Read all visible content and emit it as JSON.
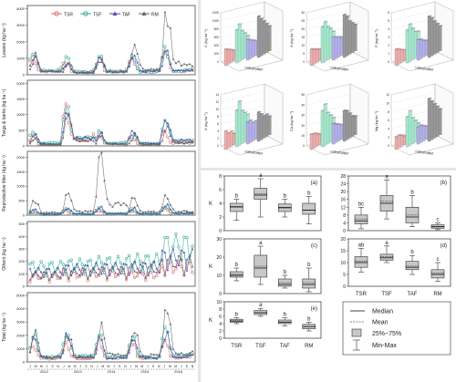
{
  "colors": {
    "TSR": "#e36b6b",
    "TSF": "#2fae97",
    "TAF": "#4b4fb0",
    "RM": "#666666",
    "TSR_bar": "#f2b0b0",
    "TSF_bar": "#a7ecd0",
    "TAF_bar": "#b6b3ef",
    "RM_bar": "#9a9a9a"
  },
  "chart_data": [
    {
      "type": "line",
      "panel": "time-series",
      "legend": [
        "TSR",
        "TSF",
        "TAF",
        "RM"
      ],
      "legend_position": "top",
      "x_years": [
        "2012",
        "2013",
        "2014",
        "2015",
        "2016"
      ],
      "x_months": [
        "J",
        "M",
        "M",
        "J",
        "S",
        "N",
        "J",
        "M",
        "M",
        "J",
        "S",
        "N",
        "J",
        "M",
        "M",
        "J",
        "S",
        "N",
        "J",
        "M",
        "M",
        "J",
        "S",
        "N",
        "J",
        "M",
        "M",
        "J",
        "S",
        "N"
      ],
      "subplots": [
        {
          "ylabel": "Leaves (kg ha⁻¹)",
          "yticks": [
            0,
            1000,
            2000,
            3000,
            4000
          ],
          "ylim": [
            0,
            4200
          ],
          "peaks": {
            "TSR": [
              1200,
              900,
              1100,
              1100,
              1400
            ],
            "TSF": [
              1400,
              1000,
              1200,
              1000,
              1500
            ],
            "TAF": [
              1300,
              800,
              1100,
              1200,
              1300
            ],
            "RM": [
              1100,
              700,
              1000,
              2000,
              3800
            ]
          }
        },
        {
          "ylabel": "Twigs & barks (kg ha⁻¹)",
          "yticks": [
            0,
            500,
            1000,
            1500,
            2000
          ],
          "ylim": [
            0,
            2100
          ],
          "peaks": {
            "TSR": [
              300,
              1100,
              400,
              300,
              500
            ],
            "TSF": [
              500,
              1500,
              500,
              400,
              900
            ],
            "TAF": [
              400,
              1300,
              400,
              500,
              1000
            ],
            "RM": [
              200,
              1000,
              300,
              300,
              600
            ]
          }
        },
        {
          "ylabel": "Reproductive litter (kg ha⁻¹)",
          "yticks": [
            0,
            500,
            1000,
            1500,
            2000
          ],
          "ylim": [
            0,
            2200
          ],
          "peaks": {
            "TSR": [
              100,
              150,
              200,
              150,
              250
            ],
            "TSF": [
              150,
              200,
              250,
              200,
              300
            ],
            "TAF": [
              200,
              250,
              300,
              250,
              350
            ],
            "RM": [
              500,
              700,
              2000,
              600,
              700
            ]
          }
        },
        {
          "ylabel": "Others (kg ha⁻¹)",
          "yticks": [
            0,
            100,
            200,
            300,
            400,
            500
          ],
          "ylim": [
            0,
            520
          ],
          "peaks": {
            "TSR": [
              100,
              120,
              130,
              120,
              200
            ],
            "TSF": [
              200,
              220,
              240,
              260,
              420
            ],
            "TAF": [
              150,
              180,
              190,
              200,
              300
            ],
            "RM": [
              120,
              150,
              160,
              180,
              250
            ]
          }
        },
        {
          "ylabel": "Total (kg ha⁻¹)",
          "yticks": [
            0,
            1000,
            2000,
            3000,
            4000,
            5000
          ],
          "ylim": [
            0,
            5200
          ],
          "peaks": {
            "TSR": [
              1500,
              1600,
              1500,
              1500,
              2000
            ],
            "TSF": [
              2200,
              2400,
              2000,
              2000,
              2500
            ],
            "TAF": [
              2000,
              2100,
              1800,
              1900,
              2300
            ],
            "RM": [
              2000,
              2200,
              3000,
              2800,
              3900
            ]
          }
        }
      ]
    },
    {
      "type": "bar",
      "panel": "3d-nutrient-bars",
      "groups": [
        "TSR",
        "TSF",
        "TAF",
        "RM"
      ],
      "subplots": [
        {
          "zlabel": "C (kg ha⁻¹)",
          "zticks": [
            0,
            200,
            400,
            600,
            800,
            1000,
            1200
          ],
          "values": {
            "TSR": [
              400,
              350,
              300,
              250,
              200
            ],
            "TSF": [
              800,
              900,
              700,
              600,
              500
            ],
            "TAF": [
              500,
              450,
              400,
              350,
              300
            ],
            "RM": [
              1000,
              900,
              800,
              700,
              600
            ]
          }
        },
        {
          "zlabel": "N (kg ha⁻¹)",
          "zticks": [
            0,
            5,
            10,
            15,
            20,
            25,
            30
          ],
          "values": {
            "TSR": [
              10,
              9,
              8,
              7,
              6
            ],
            "TSF": [
              22,
              24,
              20,
              18,
              15
            ],
            "TAF": [
              14,
              13,
              12,
              11,
              10
            ],
            "RM": [
              26,
              24,
              20,
              18,
              16
            ]
          }
        },
        {
          "zlabel": "P (kg ha⁻¹)",
          "zticks": [
            0,
            1,
            2,
            3,
            4,
            5,
            6
          ],
          "values": {
            "TSR": [
              2,
              1.8,
              1.5,
              1.3,
              1
            ],
            "TSF": [
              4,
              4.5,
              3.8,
              3.2,
              3
            ],
            "TAF": [
              2.5,
              2.3,
              2,
              1.8,
              1.5
            ],
            "RM": [
              5,
              4.6,
              4,
              3.5,
              3
            ]
          }
        },
        {
          "zlabel": "K (kg ha⁻¹)",
          "zticks": [
            0,
            2,
            4,
            6,
            8,
            10,
            12,
            14
          ],
          "values": {
            "TSR": [
              5,
              4,
              4,
              3,
              3
            ],
            "TSF": [
              10,
              12,
              9,
              8,
              7
            ],
            "TAF": [
              6,
              6,
              5,
              5,
              4
            ],
            "RM": [
              8,
              7,
              6,
              6,
              5
            ]
          }
        },
        {
          "zlabel": "Ca (kg ha⁻¹)",
          "zticks": [
            0,
            10,
            20,
            30,
            40,
            50
          ],
          "values": {
            "TSR": [
              15,
              14,
              12,
              10,
              9
            ],
            "TSF": [
              35,
              40,
              30,
              26,
              22
            ],
            "TAF": [
              20,
              18,
              16,
              14,
              12
            ],
            "RM": [
              30,
              28,
              24,
              20,
              18
            ]
          }
        },
        {
          "zlabel": "Mg (kg ha⁻¹)",
          "zticks": [
            0,
            2,
            4,
            6,
            8,
            10,
            12
          ],
          "values": {
            "TSR": [
              3,
              3,
              2.5,
              2,
              2
            ],
            "TSF": [
              7,
              8,
              6,
              5,
              4
            ],
            "TAF": [
              4,
              4,
              3.5,
              3,
              2.5
            ],
            "RM": [
              10,
              9,
              8,
              7,
              6
            ]
          }
        }
      ]
    },
    {
      "type": "boxplot",
      "panel": "boxplots",
      "categories": [
        "TSR",
        "TSF",
        "TAF",
        "RM"
      ],
      "legend": [
        "Median",
        "Mean",
        "25%~75%",
        "Min-Max"
      ],
      "subplots": [
        {
          "label": "(a)",
          "ylabel": "K",
          "yticks": [
            0,
            2,
            4,
            6,
            8
          ],
          "ylim": [
            0,
            8
          ],
          "letters": [
            "b",
            "a",
            "b",
            "b"
          ],
          "boxes": [
            {
              "min": 1.5,
              "q1": 2.8,
              "median": 3.5,
              "mean": 3.4,
              "q3": 4.0,
              "max": 4.6
            },
            {
              "min": 2.0,
              "q1": 4.6,
              "median": 5.2,
              "mean": 5.4,
              "q3": 6.2,
              "max": 7.6
            },
            {
              "min": 2.0,
              "q1": 2.8,
              "median": 3.4,
              "mean": 3.3,
              "q3": 3.9,
              "max": 4.6
            },
            {
              "min": 1.0,
              "q1": 2.4,
              "median": 3.0,
              "mean": 3.0,
              "q3": 4.0,
              "max": 5.0
            }
          ]
        },
        {
          "label": "(b)",
          "ylabel": "",
          "yticks": [
            0,
            4,
            8,
            12,
            16,
            20,
            24,
            28
          ],
          "ylim": [
            0,
            28
          ],
          "letters": [
            "bc",
            "a",
            "b",
            "c"
          ],
          "boxes": [
            {
              "min": 1,
              "q1": 3.5,
              "median": 5,
              "mean": 6,
              "q3": 8,
              "max": 12
            },
            {
              "min": 6,
              "q1": 10,
              "median": 14,
              "mean": 15,
              "q3": 18,
              "max": 26
            },
            {
              "min": 2,
              "q1": 4,
              "median": 7,
              "mean": 8,
              "q3": 12,
              "max": 18
            },
            {
              "min": 0.5,
              "q1": 1.2,
              "median": 2,
              "mean": 2.2,
              "q3": 3,
              "max": 4
            }
          ]
        },
        {
          "label": "(c)",
          "ylabel": "K",
          "yticks": [
            0,
            10,
            20,
            30
          ],
          "ylim": [
            0,
            30
          ],
          "letters": [
            "b",
            "a",
            "b",
            "b"
          ],
          "boxes": [
            {
              "min": 7,
              "q1": 9,
              "median": 10,
              "mean": 10.5,
              "q3": 12,
              "max": 14
            },
            {
              "min": 5,
              "q1": 9,
              "median": 14,
              "mean": 15,
              "q3": 21,
              "max": 26
            },
            {
              "min": 3,
              "q1": 4,
              "median": 5,
              "mean": 6,
              "q3": 8,
              "max": 10
            },
            {
              "min": 1,
              "q1": 3,
              "median": 5,
              "mean": 6,
              "q3": 8,
              "max": 14
            }
          ]
        },
        {
          "label": "(d)",
          "ylabel": "",
          "yticks": [
            0,
            5,
            10,
            15,
            20
          ],
          "ylim": [
            0,
            20
          ],
          "letters": [
            "ab",
            "a",
            "b",
            "c"
          ],
          "boxes": [
            {
              "min": 6,
              "q1": 8,
              "median": 10,
              "mean": 10.5,
              "q3": 12.5,
              "max": 16
            },
            {
              "min": 10,
              "q1": 11,
              "median": 12,
              "mean": 12.5,
              "q3": 13.5,
              "max": 17
            },
            {
              "min": 5,
              "q1": 7,
              "median": 8,
              "mean": 8.5,
              "q3": 10.5,
              "max": 13
            },
            {
              "min": 2,
              "q1": 3.5,
              "median": 5,
              "mean": 5.5,
              "q3": 7,
              "max": 10
            }
          ]
        },
        {
          "label": "(e)",
          "ylabel": "K",
          "yticks": [
            0,
            2,
            4,
            6,
            8,
            10
          ],
          "ylim": [
            0,
            10
          ],
          "letters": [
            "b",
            "a",
            "b",
            "b"
          ],
          "boxes": [
            {
              "min": 4,
              "q1": 4.4,
              "median": 4.7,
              "mean": 4.8,
              "q3": 5.2,
              "max": 5.6
            },
            {
              "min": 6,
              "q1": 6.5,
              "median": 7,
              "mean": 7,
              "q3": 7.6,
              "max": 8.2
            },
            {
              "min": 3.4,
              "q1": 4,
              "median": 4.4,
              "mean": 4.5,
              "q3": 5,
              "max": 5.6
            },
            {
              "min": 2,
              "q1": 2.6,
              "median": 3.2,
              "mean": 3.2,
              "q3": 3.8,
              "max": 4.4
            }
          ]
        }
      ]
    }
  ]
}
